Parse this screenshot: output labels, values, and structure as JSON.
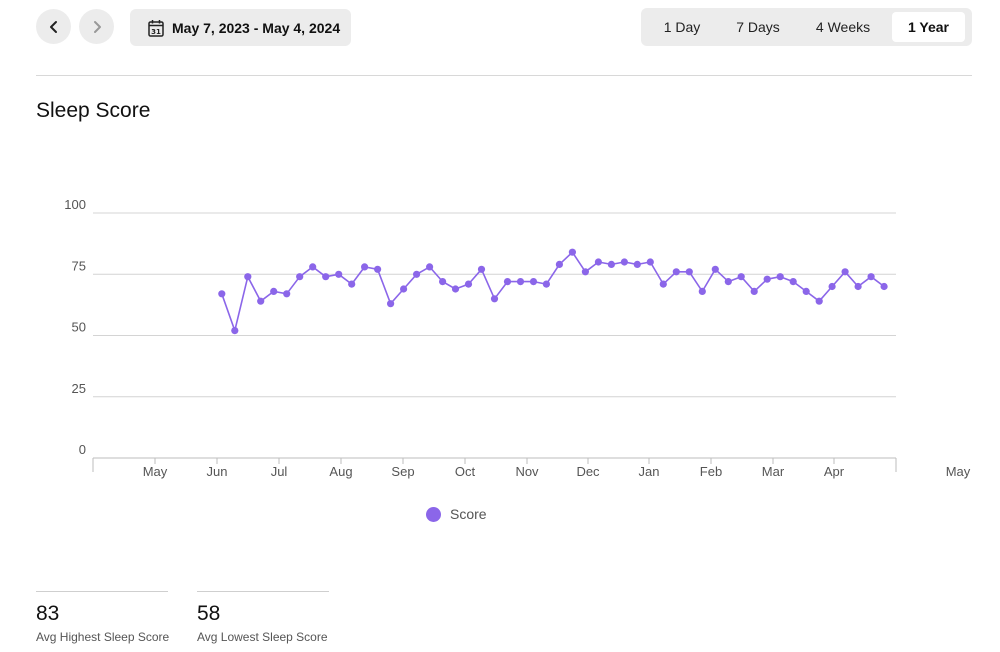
{
  "header": {
    "prev_icon": "chevron-left-icon",
    "next_icon": "chevron-right-icon",
    "calendar_icon": "calendar-icon",
    "calendar_day": "31",
    "date_range": "May 7, 2023 - May 4, 2024",
    "range_tabs": [
      {
        "label": "1 Day",
        "active": false
      },
      {
        "label": "7 Days",
        "active": false
      },
      {
        "label": "4 Weeks",
        "active": false
      },
      {
        "label": "1 Year",
        "active": true
      }
    ]
  },
  "section_title": "Sleep Score",
  "colors": {
    "series": "#8b66e9",
    "grid": "#d4d4d4",
    "control_bg": "#ececec"
  },
  "chart_data": {
    "type": "line",
    "title": "",
    "xlabel": "",
    "ylabel": "",
    "ylim": [
      0,
      100
    ],
    "y_ticks": [
      "0",
      "25",
      "50",
      "75",
      "100"
    ],
    "x_tick_labels": [
      "May",
      "Jun",
      "Jul",
      "Aug",
      "Sep",
      "Oct",
      "Nov",
      "Dec",
      "Jan",
      "Feb",
      "Mar",
      "Apr",
      "May"
    ],
    "grid": true,
    "legend_position": "bottom",
    "series": [
      {
        "name": "Score",
        "x": [
          "2023-05-07",
          "2023-05-14",
          "2023-05-21",
          "2023-05-28",
          "2023-06-04",
          "2023-06-11",
          "2023-06-18",
          "2023-06-25",
          "2023-07-02",
          "2023-07-09",
          "2023-07-16",
          "2023-07-23",
          "2023-07-30",
          "2023-08-06",
          "2023-08-13",
          "2023-08-20",
          "2023-08-27",
          "2023-09-03",
          "2023-09-10",
          "2023-09-17",
          "2023-09-24",
          "2023-10-01",
          "2023-10-08",
          "2023-10-15",
          "2023-10-22",
          "2023-10-29",
          "2023-11-05",
          "2023-11-12",
          "2023-11-19",
          "2023-11-26",
          "2023-12-03",
          "2023-12-10",
          "2023-12-17",
          "2023-12-24",
          "2023-12-31",
          "2024-01-07",
          "2024-01-14",
          "2024-01-21",
          "2024-01-28",
          "2024-02-04",
          "2024-02-11",
          "2024-02-18",
          "2024-02-25",
          "2024-03-03",
          "2024-03-10",
          "2024-03-17",
          "2024-03-24",
          "2024-03-31",
          "2024-04-07",
          "2024-04-14",
          "2024-04-21",
          "2024-04-28"
        ],
        "values": [
          67,
          52,
          74,
          64,
          68,
          67,
          74,
          78,
          74,
          75,
          71,
          78,
          77,
          63,
          69,
          75,
          78,
          72,
          69,
          71,
          77,
          65,
          72,
          72,
          72,
          71,
          79,
          84,
          76,
          80,
          79,
          80,
          79,
          80,
          71,
          76,
          76,
          68,
          77,
          72,
          74,
          68,
          73,
          74,
          72,
          68,
          64,
          70,
          76,
          70,
          74,
          70
        ]
      }
    ]
  },
  "stats": [
    {
      "value": "83",
      "label": "Avg Highest Sleep Score"
    },
    {
      "value": "58",
      "label": "Avg Lowest Sleep Score"
    }
  ]
}
